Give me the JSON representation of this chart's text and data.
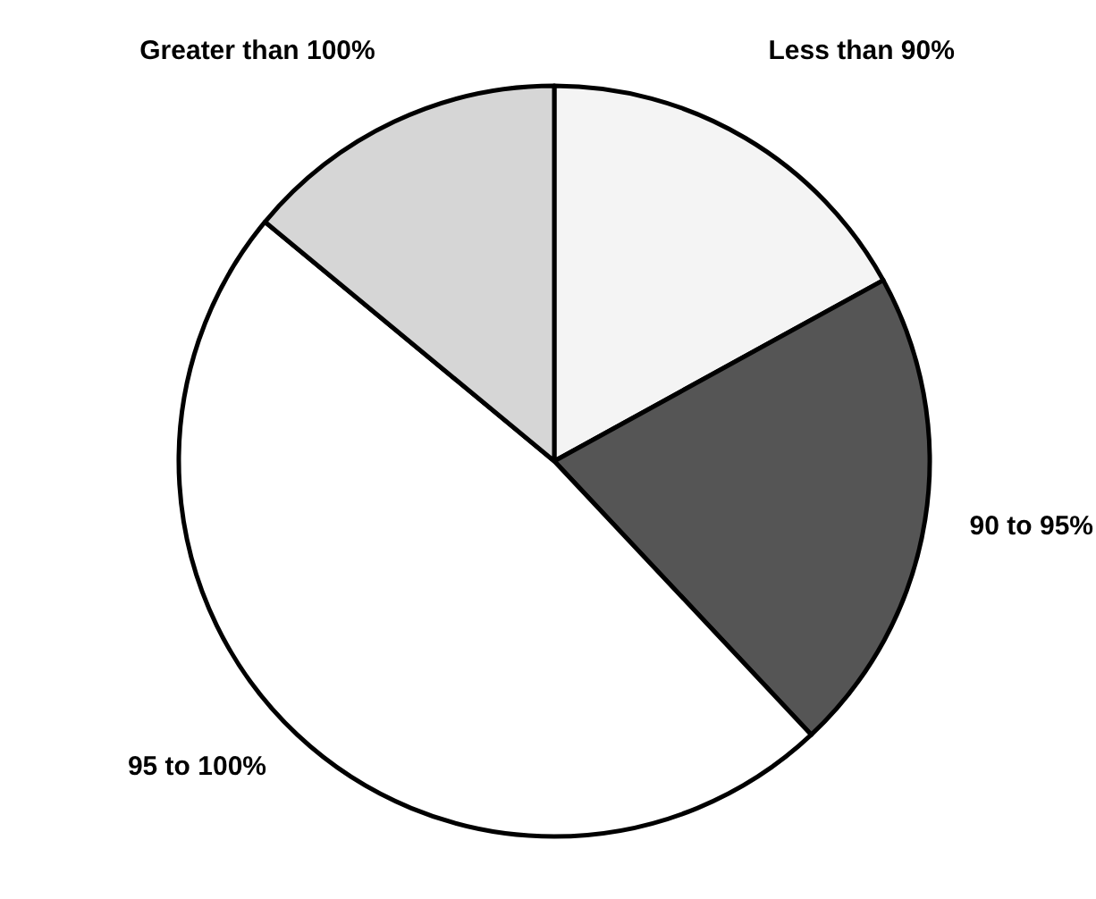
{
  "chart_data": {
    "type": "pie",
    "categories": [
      "Less than 90%",
      "90 to 95%",
      "95 to 100%",
      "Greater than 100%"
    ],
    "values": [
      17,
      21,
      48,
      14
    ],
    "colors": [
      "#f4f4f4",
      "#555555",
      "#ffffff",
      "#d6d6d6"
    ]
  }
}
